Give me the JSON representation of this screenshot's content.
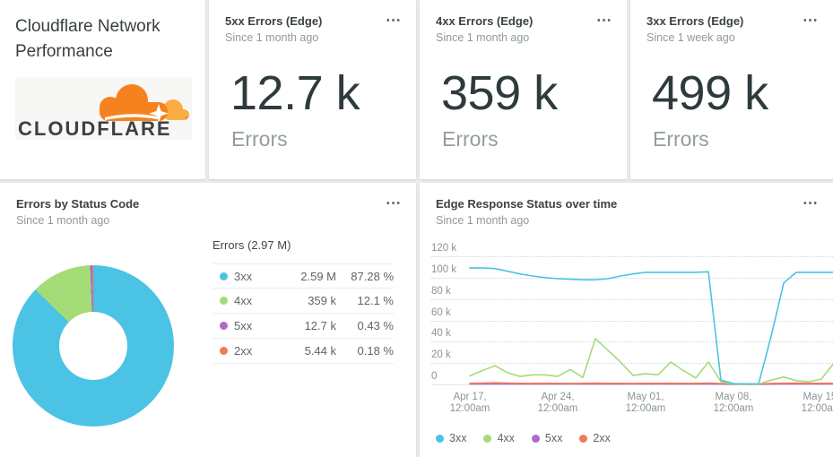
{
  "app": {
    "background": "#ebebeb",
    "menu_icon": "⋯"
  },
  "title_card": {
    "title": "Cloudflare Network Performance",
    "logo_text": "CLOUDFLARE",
    "logo_colors": {
      "cloud": "#F6821F",
      "cloud_light": "#FBAD41",
      "text": "#404041"
    }
  },
  "billboards": [
    {
      "title": "5xx Errors (Edge)",
      "subtitle": "Since 1 month ago",
      "value": "12.7 k",
      "unit": "Errors"
    },
    {
      "title": "4xx Errors (Edge)",
      "subtitle": "Since 1 month ago",
      "value": "359 k",
      "unit": "Errors"
    },
    {
      "title": "3xx Errors (Edge)",
      "subtitle": "Since 1 week ago",
      "value": "499 k",
      "unit": "Errors"
    }
  ],
  "pie_card": {
    "title": "Errors by Status Code",
    "subtitle": "Since 1 month ago"
  },
  "line_card": {
    "title": "Edge Response Status over time",
    "subtitle": "Since 1 month ago"
  },
  "status_colors": {
    "3xx": "#4ac3e4",
    "4xx": "#a4db77",
    "5xx": "#ad6bc9",
    "2xx": "#f27a5a"
  },
  "chart_data": [
    {
      "type": "pie",
      "donut": true,
      "title": "Errors by Status Code",
      "subtitle": "Since 1 month ago",
      "legend_title": "Errors (2.97 M)",
      "total_text": "2.97 M",
      "slices": [
        {
          "label": "3xx",
          "value_text": "2.59 M",
          "value": 2590000,
          "percent_text": "87.28 %",
          "percent": 87.28,
          "color": "#4ac3e4"
        },
        {
          "label": "4xx",
          "value_text": "359 k",
          "value": 359000,
          "percent_text": "12.1 %",
          "percent": 12.1,
          "color": "#a4db77"
        },
        {
          "label": "5xx",
          "value_text": "12.7 k",
          "value": 12700,
          "percent_text": "0.43 %",
          "percent": 0.43,
          "color": "#ad6bc9"
        },
        {
          "label": "2xx",
          "value_text": "5.44 k",
          "value": 5440,
          "percent_text": "0.18 %",
          "percent": 0.18,
          "color": "#f27a5a"
        }
      ]
    },
    {
      "type": "line",
      "title": "Edge Response Status over time",
      "subtitle": "Since 1 month ago",
      "ylim": [
        0,
        120000
      ],
      "y_unit": "errors",
      "grid": "horizontal dotted, solid baseline",
      "legend_position": "bottom-left",
      "yticks": [
        {
          "label": "120 k",
          "value": 120
        },
        {
          "label": "100 k",
          "value": 100
        },
        {
          "label": "80 k",
          "value": 80
        },
        {
          "label": "60 k",
          "value": 60
        },
        {
          "label": "40 k",
          "value": 40
        },
        {
          "label": "20 k",
          "value": 20
        },
        {
          "label": "0",
          "value": 0
        }
      ],
      "xticks": [
        {
          "label_line1": "Apr 17,",
          "label_line2": "12:00am",
          "day": 0
        },
        {
          "label_line1": "Apr 24,",
          "label_line2": "12:00am",
          "day": 7
        },
        {
          "label_line1": "May 01,",
          "label_line2": "12:00am",
          "day": 14
        },
        {
          "label_line1": "May 08,",
          "label_line2": "12:00am",
          "day": 21
        },
        {
          "label_line1": "May 15,",
          "label_line2": "12:00am",
          "day": 28
        }
      ],
      "x_span_days": 29,
      "values_unit": "thousands of errors per day",
      "series": [
        {
          "name": "3xx",
          "color": "#4ac3e4",
          "values": [
            109,
            109,
            108.5,
            106,
            103.5,
            101.5,
            100,
            99,
            98.5,
            98,
            98,
            99,
            101.5,
            103.5,
            105,
            105,
            105,
            105,
            105,
            105.5,
            4,
            0.8,
            0.5,
            0.5,
            45,
            95,
            105,
            105,
            105,
            105
          ]
        },
        {
          "name": "4xx",
          "color": "#a4db77",
          "values": [
            8,
            13,
            17.5,
            11,
            7.5,
            9,
            9,
            7.5,
            14,
            6.5,
            43,
            32,
            21,
            8.5,
            10,
            9,
            21,
            13,
            6,
            21,
            2.5,
            0.3,
            0.3,
            0.3,
            4,
            7,
            3.5,
            2.5,
            5,
            20
          ]
        },
        {
          "name": "5xx",
          "color": "#ad6bc9",
          "values": [
            0.4,
            0.4,
            0.4,
            0.4,
            0.4,
            0.4,
            0.4,
            0.4,
            0.4,
            0.4,
            0.4,
            0.4,
            0.4,
            0.4,
            0.4,
            0.4,
            0.4,
            0.4,
            0.4,
            0.4,
            0.3,
            0.2,
            0.2,
            0.2,
            0.3,
            0.4,
            0.4,
            0.4,
            0.4,
            0.4
          ]
        },
        {
          "name": "2xx",
          "color": "#f27a5a",
          "values": [
            1,
            1.2,
            1.5,
            1.3,
            1,
            1,
            1.1,
            1,
            0.9,
            1,
            1.2,
            1,
            1,
            0.9,
            1,
            1,
            1.1,
            1,
            1,
            1.3,
            0.8,
            0.4,
            0.3,
            0.4,
            0.9,
            1.1,
            1.3,
            1.1,
            1,
            1
          ]
        }
      ],
      "legend": [
        {
          "label": "3xx",
          "color": "#4ac3e4"
        },
        {
          "label": "4xx",
          "color": "#a4db77"
        },
        {
          "label": "5xx",
          "color": "#ad6bc9"
        },
        {
          "label": "2xx",
          "color": "#f27a5a"
        }
      ]
    }
  ]
}
